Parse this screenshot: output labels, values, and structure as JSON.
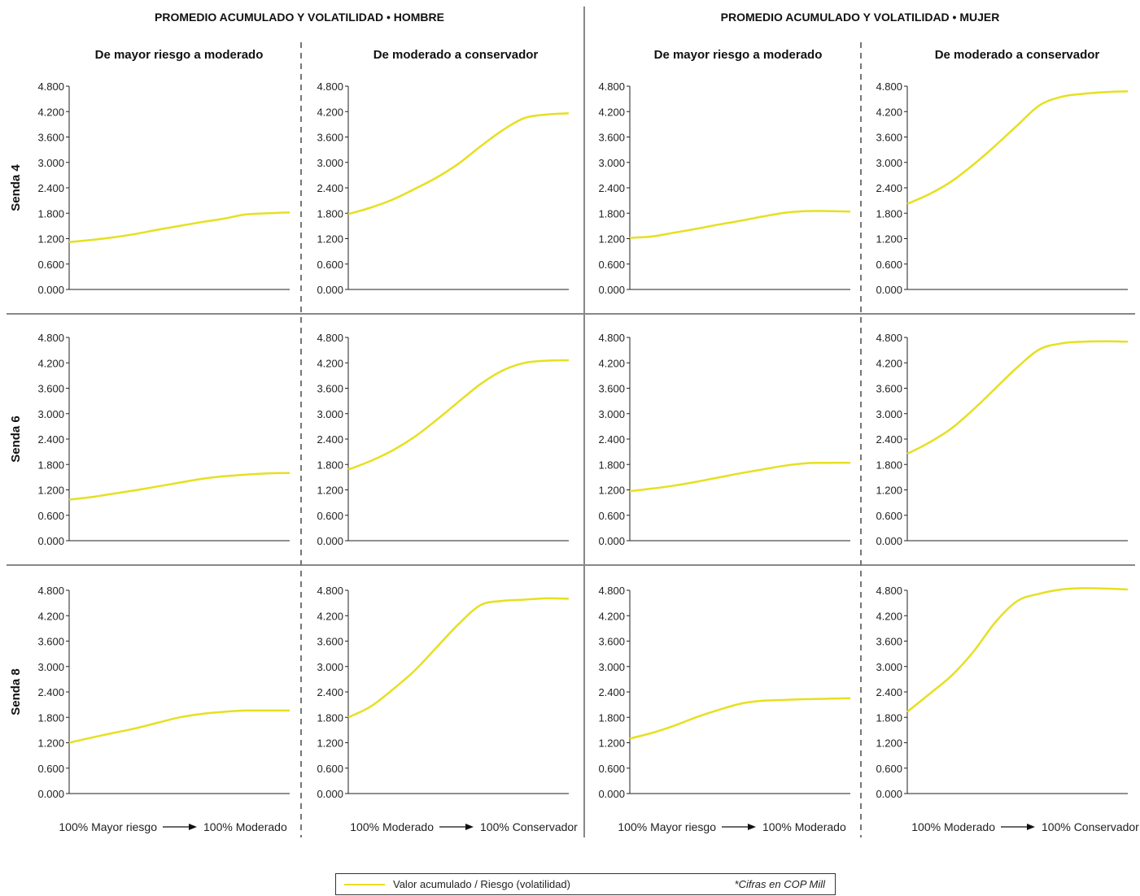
{
  "colors": {
    "line": "#e6e020",
    "axis": "#222222",
    "separator": "#888888",
    "dashed": "#777777"
  },
  "header": {
    "left": "PROMEDIO ACUMULADO Y VOLATILIDAD • HOMBRE",
    "right": "PROMEDIO ACUMULADO Y VOLATILIDAD • MUJER"
  },
  "column_titles": [
    "De mayor riesgo a moderado",
    "De moderado a conservador",
    "De mayor riesgo a moderado",
    "De moderado a conservador"
  ],
  "row_labels": [
    "Senda 4",
    "Senda 6",
    "Senda 8"
  ],
  "x_axis_labels": [
    {
      "start": "100% Mayor riesgo",
      "end": "100% Moderado"
    },
    {
      "start": "100% Moderado",
      "end": "100% Conservador"
    },
    {
      "start": "100% Mayor riesgo",
      "end": "100% Moderado"
    },
    {
      "start": "100% Moderado",
      "end": "100% Conservador"
    }
  ],
  "legend": {
    "series_label": "Valor acumulado / Riesgo (volatilidad)",
    "note": "*Cifras en COP Mill"
  },
  "chart_data": [
    {
      "type": "line",
      "senda": "Senda 4",
      "group": "HOMBRE",
      "subtitle": "De mayor riesgo a moderado",
      "ylim": [
        0,
        4.8
      ],
      "yticks": [
        "0.000",
        "0.600",
        "1.200",
        "1.800",
        "2.400",
        "3.000",
        "3.600",
        "4.200",
        "4.800"
      ],
      "x": [
        0,
        1,
        2,
        3,
        4,
        5,
        6,
        7,
        8,
        9,
        10
      ],
      "values": [
        1.12,
        1.17,
        1.23,
        1.31,
        1.41,
        1.5,
        1.59,
        1.67,
        1.77,
        1.8,
        1.82
      ]
    },
    {
      "type": "line",
      "senda": "Senda 4",
      "group": "HOMBRE",
      "subtitle": "De moderado a conservador",
      "ylim": [
        0,
        4.8
      ],
      "yticks": [
        "0.000",
        "0.600",
        "1.200",
        "1.800",
        "2.400",
        "3.000",
        "3.600",
        "4.200",
        "4.800"
      ],
      "x": [
        0,
        1,
        2,
        3,
        4,
        5,
        6,
        7,
        8,
        9,
        10
      ],
      "values": [
        1.78,
        1.93,
        2.12,
        2.37,
        2.64,
        2.97,
        3.38,
        3.76,
        4.05,
        4.13,
        4.16
      ]
    },
    {
      "type": "line",
      "senda": "Senda 4",
      "group": "MUJER",
      "subtitle": "De mayor riesgo a moderado",
      "ylim": [
        0,
        4.8
      ],
      "yticks": [
        "0.000",
        "0.600",
        "1.200",
        "1.800",
        "2.400",
        "3.000",
        "3.600",
        "4.200",
        "4.800"
      ],
      "x": [
        0,
        1,
        2,
        3,
        4,
        5,
        6,
        7,
        8,
        9,
        10
      ],
      "values": [
        1.22,
        1.25,
        1.34,
        1.43,
        1.53,
        1.62,
        1.72,
        1.81,
        1.85,
        1.85,
        1.84
      ]
    },
    {
      "type": "line",
      "senda": "Senda 4",
      "group": "MUJER",
      "subtitle": "De moderado a conservador",
      "ylim": [
        0,
        4.8
      ],
      "yticks": [
        "0.000",
        "0.600",
        "1.200",
        "1.800",
        "2.400",
        "3.000",
        "3.600",
        "4.200",
        "4.800"
      ],
      "x": [
        0,
        1,
        2,
        3,
        4,
        5,
        6,
        7,
        8,
        9,
        10
      ],
      "values": [
        2.02,
        2.25,
        2.55,
        2.95,
        3.4,
        3.88,
        4.35,
        4.55,
        4.62,
        4.66,
        4.68
      ]
    },
    {
      "type": "line",
      "senda": "Senda 6",
      "group": "HOMBRE",
      "subtitle": "De mayor riesgo a moderado",
      "ylim": [
        0,
        4.8
      ],
      "yticks": [
        "0.000",
        "0.600",
        "1.200",
        "1.800",
        "2.400",
        "3.000",
        "3.600",
        "4.200",
        "4.800"
      ],
      "x": [
        0,
        1,
        2,
        3,
        4,
        5,
        6,
        7,
        8,
        9,
        10
      ],
      "values": [
        0.97,
        1.03,
        1.11,
        1.19,
        1.28,
        1.37,
        1.46,
        1.52,
        1.56,
        1.59,
        1.6
      ]
    },
    {
      "type": "line",
      "senda": "Senda 6",
      "group": "HOMBRE",
      "subtitle": "De moderado a conservador",
      "ylim": [
        0,
        4.8
      ],
      "yticks": [
        "0.000",
        "0.600",
        "1.200",
        "1.800",
        "2.400",
        "3.000",
        "3.600",
        "4.200",
        "4.800"
      ],
      "x": [
        0,
        1,
        2,
        3,
        4,
        5,
        6,
        7,
        8,
        9,
        10
      ],
      "values": [
        1.68,
        1.88,
        2.13,
        2.45,
        2.85,
        3.28,
        3.7,
        4.02,
        4.2,
        4.25,
        4.26
      ]
    },
    {
      "type": "line",
      "senda": "Senda 6",
      "group": "MUJER",
      "subtitle": "De mayor riesgo a moderado",
      "ylim": [
        0,
        4.8
      ],
      "yticks": [
        "0.000",
        "0.600",
        "1.200",
        "1.800",
        "2.400",
        "3.000",
        "3.600",
        "4.200",
        "4.800"
      ],
      "x": [
        0,
        1,
        2,
        3,
        4,
        5,
        6,
        7,
        8,
        9,
        10
      ],
      "values": [
        1.17,
        1.23,
        1.3,
        1.39,
        1.49,
        1.59,
        1.68,
        1.77,
        1.83,
        1.84,
        1.84
      ]
    },
    {
      "type": "line",
      "senda": "Senda 6",
      "group": "MUJER",
      "subtitle": "De moderado a conservador",
      "ylim": [
        0,
        4.8
      ],
      "yticks": [
        "0.000",
        "0.600",
        "1.200",
        "1.800",
        "2.400",
        "3.000",
        "3.600",
        "4.200",
        "4.800"
      ],
      "x": [
        0,
        1,
        2,
        3,
        4,
        5,
        6,
        7,
        8,
        9,
        10
      ],
      "values": [
        2.05,
        2.32,
        2.65,
        3.1,
        3.6,
        4.1,
        4.52,
        4.66,
        4.7,
        4.71,
        4.7
      ]
    },
    {
      "type": "line",
      "senda": "Senda 8",
      "group": "HOMBRE",
      "subtitle": "De mayor riesgo a moderado",
      "ylim": [
        0,
        4.8
      ],
      "yticks": [
        "0.000",
        "0.600",
        "1.200",
        "1.800",
        "2.400",
        "3.000",
        "3.600",
        "4.200",
        "4.800"
      ],
      "x": [
        0,
        1,
        2,
        3,
        4,
        5,
        6,
        7,
        8,
        9,
        10
      ],
      "values": [
        1.2,
        1.32,
        1.43,
        1.54,
        1.67,
        1.8,
        1.88,
        1.93,
        1.96,
        1.96,
        1.96
      ]
    },
    {
      "type": "line",
      "senda": "Senda 8",
      "group": "HOMBRE",
      "subtitle": "De moderado a conservador",
      "ylim": [
        0,
        4.8
      ],
      "yticks": [
        "0.000",
        "0.600",
        "1.200",
        "1.800",
        "2.400",
        "3.000",
        "3.600",
        "4.200",
        "4.800"
      ],
      "x": [
        0,
        1,
        2,
        3,
        4,
        5,
        6,
        7,
        8,
        9,
        10
      ],
      "values": [
        1.8,
        2.05,
        2.45,
        2.9,
        3.45,
        4.0,
        4.45,
        4.55,
        4.58,
        4.61,
        4.6
      ]
    },
    {
      "type": "line",
      "senda": "Senda 8",
      "group": "MUJER",
      "subtitle": "De mayor riesgo a moderado",
      "ylim": [
        0,
        4.8
      ],
      "yticks": [
        "0.000",
        "0.600",
        "1.200",
        "1.800",
        "2.400",
        "3.000",
        "3.600",
        "4.200",
        "4.800"
      ],
      "x": [
        0,
        1,
        2,
        3,
        4,
        5,
        6,
        7,
        8,
        9,
        10
      ],
      "values": [
        1.3,
        1.43,
        1.6,
        1.8,
        1.97,
        2.12,
        2.19,
        2.21,
        2.23,
        2.24,
        2.25
      ]
    },
    {
      "type": "line",
      "senda": "Senda 8",
      "group": "MUJER",
      "subtitle": "De moderado a conservador",
      "ylim": [
        0,
        4.8
      ],
      "yticks": [
        "0.000",
        "0.600",
        "1.200",
        "1.800",
        "2.400",
        "3.000",
        "3.600",
        "4.200",
        "4.800"
      ],
      "x": [
        0,
        1,
        2,
        3,
        4,
        5,
        6,
        7,
        8,
        9,
        10
      ],
      "values": [
        1.93,
        2.35,
        2.78,
        3.35,
        4.05,
        4.55,
        4.72,
        4.82,
        4.85,
        4.84,
        4.82
      ]
    }
  ]
}
